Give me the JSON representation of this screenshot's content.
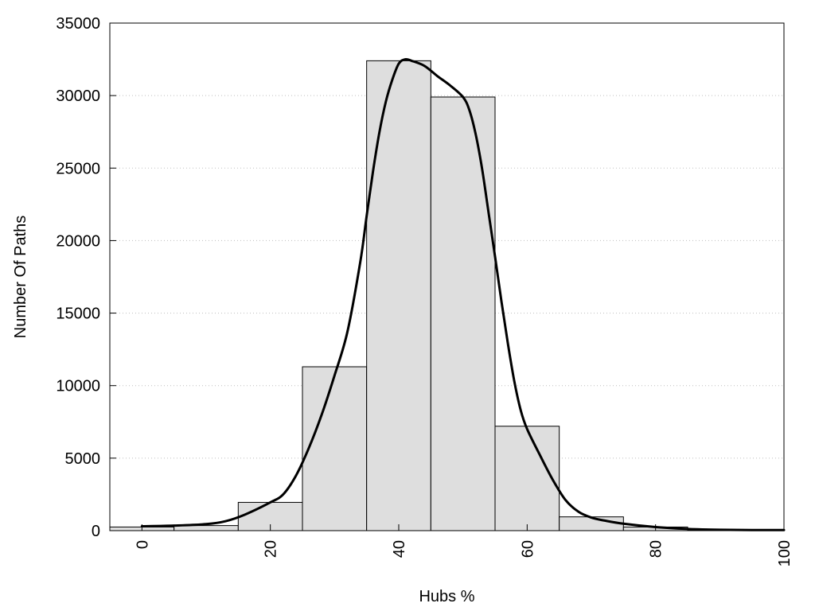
{
  "chart_data": {
    "type": "bar",
    "subtype": "histogram",
    "title": "",
    "xlabel": "Hubs %",
    "ylabel": "Number Of Paths",
    "xlim": [
      -5,
      100
    ],
    "ylim": [
      0,
      35000
    ],
    "xticks": [
      "0",
      "20",
      "40",
      "60",
      "80",
      "100"
    ],
    "xtick_values": [
      0,
      20,
      40,
      60,
      80,
      100
    ],
    "yticks": [
      "0",
      "5000",
      "10000",
      "15000",
      "20000",
      "25000",
      "30000",
      "35000"
    ],
    "ytick_values": [
      0,
      5000,
      10000,
      15000,
      20000,
      25000,
      30000,
      35000
    ],
    "grid": "horizontal dotted",
    "bin_width": 10,
    "bins": [
      {
        "center": 0,
        "value": 250
      },
      {
        "center": 10,
        "value": 350
      },
      {
        "center": 20,
        "value": 1950
      },
      {
        "center": 30,
        "value": 11300
      },
      {
        "center": 40,
        "value": 32400
      },
      {
        "center": 50,
        "value": 29900
      },
      {
        "center": 60,
        "value": 7200
      },
      {
        "center": 70,
        "value": 950
      },
      {
        "center": 80,
        "value": 250
      },
      {
        "center": 90,
        "value": 30
      },
      {
        "center": 100,
        "value": 20
      }
    ],
    "curve": {
      "x": [
        0,
        5,
        10,
        13,
        16,
        20,
        22,
        24,
        26,
        28,
        30,
        32,
        34,
        35,
        36,
        37,
        38,
        39,
        40,
        41,
        42,
        44,
        46,
        48,
        50,
        51,
        52,
        53,
        54,
        55,
        56,
        57,
        58,
        59,
        60,
        62,
        64,
        66,
        68,
        70,
        72,
        75,
        80,
        85,
        90,
        95,
        100
      ],
      "y": [
        300,
        350,
        450,
        650,
        1100,
        1950,
        2500,
        3800,
        5700,
        8000,
        10700,
        13700,
        18500,
        21700,
        24800,
        27500,
        29600,
        31100,
        32200,
        32500,
        32400,
        32050,
        31350,
        30700,
        29900,
        29000,
        27300,
        24900,
        21900,
        18900,
        15800,
        12900,
        10300,
        8300,
        7000,
        5200,
        3500,
        2100,
        1300,
        900,
        700,
        480,
        250,
        120,
        60,
        40,
        40
      ],
      "color": "#000000"
    },
    "bar_fill": "#dedede",
    "bar_stroke": "#000000"
  }
}
